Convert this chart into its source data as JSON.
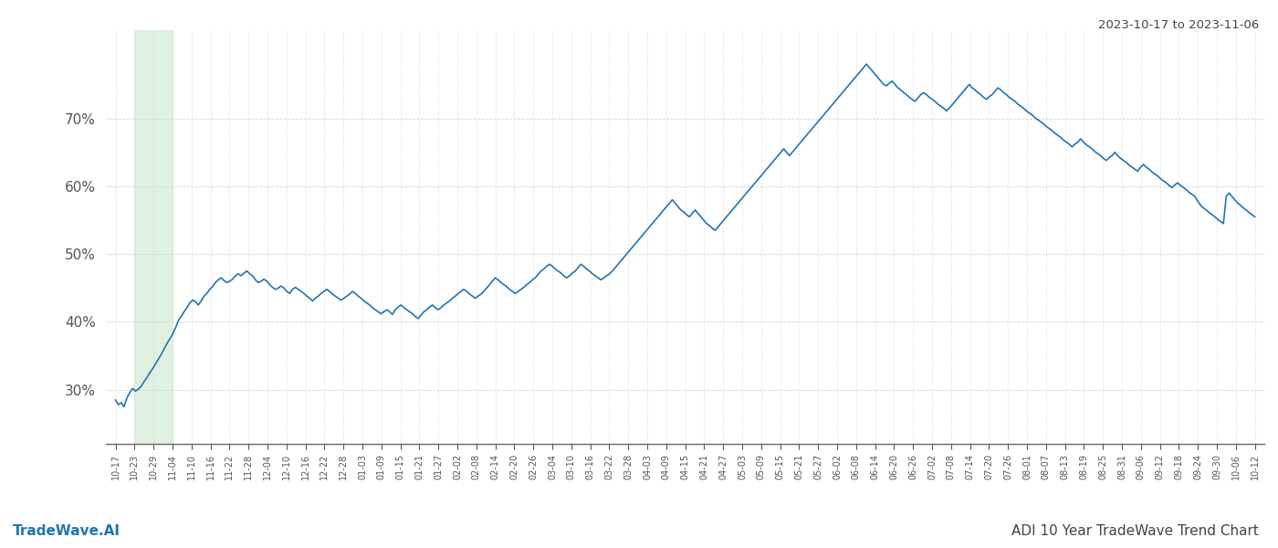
{
  "title_top_right": "2023-10-17 to 2023-11-06",
  "title_bottom_left": "TradeWave.AI",
  "title_bottom_right": "ADI 10 Year TradeWave Trend Chart",
  "line_color": "#2176AE",
  "line_width": 1.2,
  "shade_start_label": "10-23",
  "shade_end_label": "11-04",
  "shade_color": "#c8e6c9",
  "shade_alpha": 0.55,
  "background_color": "#ffffff",
  "grid_color": "#cccccc",
  "ylim": [
    22,
    83
  ],
  "yticks": [
    30,
    40,
    50,
    60,
    70
  ],
  "xtick_labels": [
    "10-17",
    "10-23",
    "10-29",
    "11-04",
    "11-10",
    "11-16",
    "11-22",
    "11-28",
    "12-04",
    "12-10",
    "12-16",
    "12-22",
    "12-28",
    "01-03",
    "01-09",
    "01-15",
    "01-21",
    "01-27",
    "02-02",
    "02-08",
    "02-14",
    "02-20",
    "02-26",
    "03-04",
    "03-10",
    "03-16",
    "03-22",
    "03-28",
    "04-03",
    "04-09",
    "04-15",
    "04-21",
    "04-27",
    "05-03",
    "05-09",
    "05-15",
    "05-21",
    "05-27",
    "06-02",
    "06-08",
    "06-14",
    "06-20",
    "06-26",
    "07-02",
    "07-08",
    "07-14",
    "07-20",
    "07-26",
    "08-01",
    "08-07",
    "08-13",
    "08-19",
    "08-25",
    "08-31",
    "09-06",
    "09-12",
    "09-18",
    "09-24",
    "09-30",
    "10-06",
    "10-12"
  ],
  "daily_values": [
    28.5,
    27.8,
    28.1,
    27.5,
    28.8,
    29.6,
    30.2,
    29.8,
    30.1,
    30.5,
    31.2,
    31.8,
    32.5,
    33.1,
    33.8,
    34.5,
    35.2,
    36.0,
    36.8,
    37.5,
    38.2,
    39.1,
    40.2,
    40.8,
    41.5,
    42.1,
    42.8,
    43.2,
    43.0,
    42.5,
    43.1,
    43.8,
    44.2,
    44.8,
    45.2,
    45.8,
    46.2,
    46.5,
    46.1,
    45.8,
    46.0,
    46.3,
    46.8,
    47.1,
    46.8,
    47.2,
    47.5,
    47.1,
    46.8,
    46.2,
    45.8,
    46.0,
    46.3,
    46.0,
    45.5,
    45.1,
    44.8,
    45.0,
    45.3,
    45.0,
    44.5,
    44.2,
    44.8,
    45.1,
    44.8,
    44.5,
    44.2,
    43.8,
    43.5,
    43.1,
    43.5,
    43.8,
    44.2,
    44.5,
    44.8,
    44.5,
    44.1,
    43.8,
    43.5,
    43.2,
    43.5,
    43.8,
    44.1,
    44.5,
    44.2,
    43.8,
    43.5,
    43.1,
    42.8,
    42.5,
    42.1,
    41.8,
    41.5,
    41.2,
    41.5,
    41.8,
    41.5,
    41.1,
    41.8,
    42.2,
    42.5,
    42.1,
    41.8,
    41.5,
    41.2,
    40.8,
    40.5,
    41.0,
    41.5,
    41.8,
    42.2,
    42.5,
    42.1,
    41.8,
    42.1,
    42.5,
    42.8,
    43.1,
    43.5,
    43.8,
    44.2,
    44.5,
    44.8,
    44.5,
    44.1,
    43.8,
    43.5,
    43.8,
    44.1,
    44.5,
    45.0,
    45.5,
    46.0,
    46.5,
    46.2,
    45.8,
    45.5,
    45.2,
    44.8,
    44.5,
    44.2,
    44.5,
    44.8,
    45.1,
    45.5,
    45.8,
    46.2,
    46.5,
    47.0,
    47.5,
    47.8,
    48.2,
    48.5,
    48.2,
    47.8,
    47.5,
    47.2,
    46.8,
    46.5,
    46.8,
    47.2,
    47.5,
    48.0,
    48.5,
    48.2,
    47.8,
    47.5,
    47.1,
    46.8,
    46.5,
    46.2,
    46.5,
    46.8,
    47.1,
    47.5,
    48.0,
    48.5,
    49.0,
    49.5,
    50.0,
    50.5,
    51.0,
    51.5,
    52.0,
    52.5,
    53.0,
    53.5,
    54.0,
    54.5,
    55.0,
    55.5,
    56.0,
    56.5,
    57.0,
    57.5,
    58.0,
    57.5,
    57.0,
    56.5,
    56.2,
    55.8,
    55.5,
    56.0,
    56.5,
    56.0,
    55.5,
    55.0,
    54.5,
    54.2,
    53.8,
    53.5,
    54.0,
    54.5,
    55.0,
    55.5,
    56.0,
    56.5,
    57.0,
    57.5,
    58.0,
    58.5,
    59.0,
    59.5,
    60.0,
    60.5,
    61.0,
    61.5,
    62.0,
    62.5,
    63.0,
    63.5,
    64.0,
    64.5,
    65.0,
    65.5,
    65.0,
    64.5,
    65.0,
    65.5,
    66.0,
    66.5,
    67.0,
    67.5,
    68.0,
    68.5,
    69.0,
    69.5,
    70.0,
    70.5,
    71.0,
    71.5,
    72.0,
    72.5,
    73.0,
    73.5,
    74.0,
    74.5,
    75.0,
    75.5,
    76.0,
    76.5,
    77.0,
    77.5,
    78.0,
    77.5,
    77.0,
    76.5,
    76.0,
    75.5,
    75.0,
    74.8,
    75.2,
    75.5,
    75.0,
    74.5,
    74.2,
    73.8,
    73.5,
    73.1,
    72.8,
    72.5,
    73.0,
    73.5,
    73.8,
    73.5,
    73.1,
    72.8,
    72.5,
    72.1,
    71.8,
    71.5,
    71.1,
    71.5,
    72.0,
    72.5,
    73.0,
    73.5,
    74.0,
    74.5,
    75.0,
    74.5,
    74.2,
    73.8,
    73.5,
    73.1,
    72.8,
    73.2,
    73.5,
    74.0,
    74.5,
    74.2,
    73.8,
    73.5,
    73.1,
    72.8,
    72.5,
    72.1,
    71.8,
    71.5,
    71.1,
    70.8,
    70.5,
    70.1,
    69.8,
    69.5,
    69.2,
    68.8,
    68.5,
    68.2,
    67.8,
    67.5,
    67.2,
    66.8,
    66.5,
    66.2,
    65.8,
    66.2,
    66.5,
    67.0,
    66.5,
    66.1,
    65.8,
    65.5,
    65.1,
    64.8,
    64.5,
    64.1,
    63.8,
    64.2,
    64.5,
    65.0,
    64.5,
    64.1,
    63.8,
    63.5,
    63.1,
    62.8,
    62.5,
    62.2,
    62.8,
    63.2,
    62.8,
    62.5,
    62.1,
    61.8,
    61.5,
    61.1,
    60.8,
    60.5,
    60.1,
    59.8,
    60.2,
    60.5,
    60.1,
    59.8,
    59.5,
    59.1,
    58.8,
    58.5,
    57.8,
    57.2,
    56.8,
    56.5,
    56.1,
    55.8,
    55.5,
    55.1,
    54.8,
    54.5,
    58.5,
    59.0,
    58.5,
    58.0,
    57.5,
    57.2,
    56.8,
    56.5,
    56.1,
    55.8,
    55.5
  ]
}
